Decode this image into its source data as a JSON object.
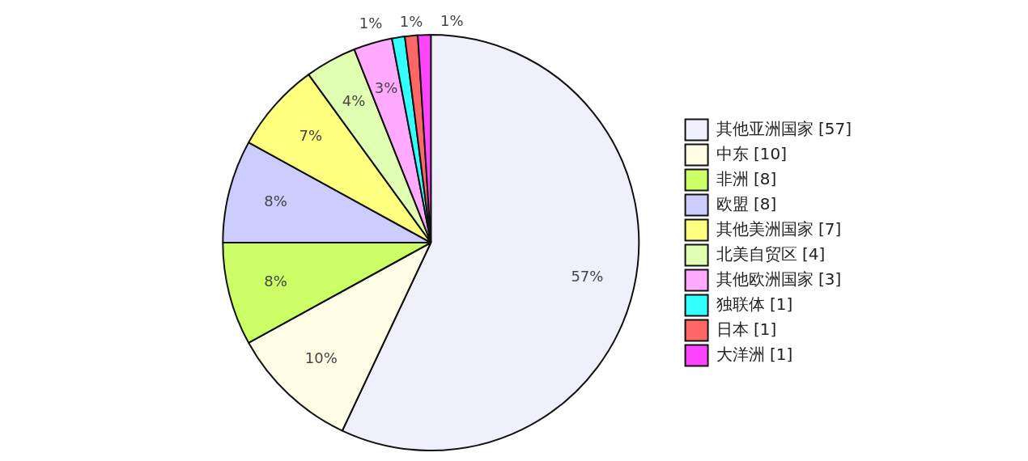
{
  "chart_data": {
    "type": "pie",
    "categories": [
      "其他亚洲国家 [57]",
      "中东 [10]",
      "非洲 [8]",
      "欧盟 [8]",
      "其他美洲国家 [7]",
      "北美自贸区 [4]",
      "其他欧洲国家 [3]",
      "独联体 [1]",
      "日本 [1]",
      "大洋洲 [1]"
    ],
    "values": [
      57,
      10,
      8,
      8,
      7,
      4,
      3,
      1,
      1,
      1
    ],
    "value_labels": [
      "57%",
      "10%",
      "8%",
      "8%",
      "7%",
      "4%",
      "3%",
      "1%",
      "1%",
      "1%"
    ],
    "colors": [
      "#f0f0fc",
      "#fffde6",
      "#ccff66",
      "#ccccff",
      "#ffff80",
      "#e0ffb0",
      "#ffaaff",
      "#33ffff",
      "#ff6666",
      "#ff44ff"
    ],
    "legend": "right"
  }
}
